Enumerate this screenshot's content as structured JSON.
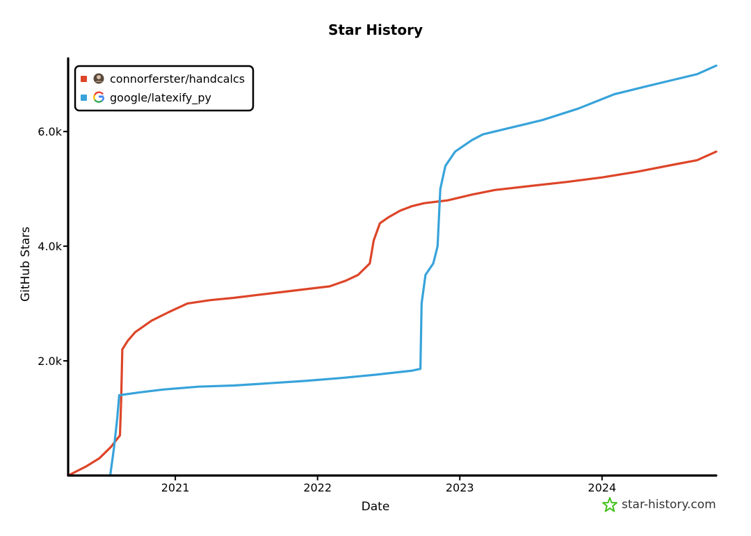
{
  "chart_data": {
    "type": "line",
    "title": "Star History",
    "xlabel": "Date",
    "ylabel": "GitHub Stars",
    "x_range": [
      "2020-04-01",
      "2024-10-20"
    ],
    "ylim": [
      0,
      7300
    ],
    "x_ticks": [
      {
        "date": "2021-01-01",
        "label": "2021"
      },
      {
        "date": "2022-01-01",
        "label": "2022"
      },
      {
        "date": "2023-01-01",
        "label": "2023"
      },
      {
        "date": "2024-01-01",
        "label": "2024"
      }
    ],
    "y_ticks": [
      {
        "value": 2000,
        "label": "2.0k"
      },
      {
        "value": 4000,
        "label": "4.0k"
      },
      {
        "value": 6000,
        "label": "6.0k"
      }
    ],
    "legend_position": "top-left",
    "series": [
      {
        "name": "connorferster/handcalcs",
        "color": "#dd4528",
        "icon": "avatar-icon",
        "points": [
          [
            "2020-04-01",
            0
          ],
          [
            "2020-05-15",
            150
          ],
          [
            "2020-06-20",
            300
          ],
          [
            "2020-07-20",
            500
          ],
          [
            "2020-08-12",
            700
          ],
          [
            "2020-08-15",
            1300
          ],
          [
            "2020-08-18",
            2200
          ],
          [
            "2020-09-01",
            2350
          ],
          [
            "2020-09-20",
            2500
          ],
          [
            "2020-11-01",
            2700
          ],
          [
            "2020-12-15",
            2850
          ],
          [
            "2021-02-01",
            3000
          ],
          [
            "2021-04-01",
            3060
          ],
          [
            "2021-06-01",
            3100
          ],
          [
            "2021-08-01",
            3150
          ],
          [
            "2021-10-01",
            3200
          ],
          [
            "2021-12-01",
            3250
          ],
          [
            "2022-02-01",
            3300
          ],
          [
            "2022-03-15",
            3400
          ],
          [
            "2022-04-15",
            3500
          ],
          [
            "2022-05-15",
            3700
          ],
          [
            "2022-05-25",
            4100
          ],
          [
            "2022-06-10",
            4400
          ],
          [
            "2022-07-01",
            4500
          ],
          [
            "2022-08-01",
            4620
          ],
          [
            "2022-09-01",
            4700
          ],
          [
            "2022-10-01",
            4750
          ],
          [
            "2022-12-01",
            4800
          ],
          [
            "2023-02-01",
            4900
          ],
          [
            "2023-04-01",
            4980
          ],
          [
            "2023-07-01",
            5050
          ],
          [
            "2023-10-01",
            5120
          ],
          [
            "2024-01-01",
            5200
          ],
          [
            "2024-04-01",
            5300
          ],
          [
            "2024-07-01",
            5420
          ],
          [
            "2024-09-01",
            5500
          ],
          [
            "2024-10-20",
            5650
          ]
        ]
      },
      {
        "name": "google/latexify_py",
        "color": "#37a3da",
        "icon": "google-icon",
        "points": [
          [
            "2020-07-18",
            0
          ],
          [
            "2020-07-28",
            500
          ],
          [
            "2020-08-05",
            1000
          ],
          [
            "2020-08-10",
            1400
          ],
          [
            "2020-10-01",
            1450
          ],
          [
            "2020-12-01",
            1500
          ],
          [
            "2021-03-01",
            1550
          ],
          [
            "2021-06-01",
            1570
          ],
          [
            "2021-09-01",
            1610
          ],
          [
            "2021-12-01",
            1650
          ],
          [
            "2022-03-01",
            1700
          ],
          [
            "2022-06-01",
            1760
          ],
          [
            "2022-09-01",
            1830
          ],
          [
            "2022-09-22",
            1860
          ],
          [
            "2022-09-25",
            3000
          ],
          [
            "2022-10-05",
            3500
          ],
          [
            "2022-10-25",
            3700
          ],
          [
            "2022-11-05",
            4000
          ],
          [
            "2022-11-12",
            5000
          ],
          [
            "2022-11-25",
            5400
          ],
          [
            "2022-12-20",
            5650
          ],
          [
            "2023-02-01",
            5850
          ],
          [
            "2023-03-01",
            5950
          ],
          [
            "2023-05-01",
            6050
          ],
          [
            "2023-08-01",
            6200
          ],
          [
            "2023-11-01",
            6400
          ],
          [
            "2024-02-01",
            6650
          ],
          [
            "2024-05-01",
            6800
          ],
          [
            "2024-07-01",
            6900
          ],
          [
            "2024-09-01",
            7000
          ],
          [
            "2024-10-20",
            7150
          ]
        ]
      }
    ]
  },
  "branding": {
    "text": "star-history.com",
    "icon": "star-icon",
    "color": "#44c11c"
  }
}
